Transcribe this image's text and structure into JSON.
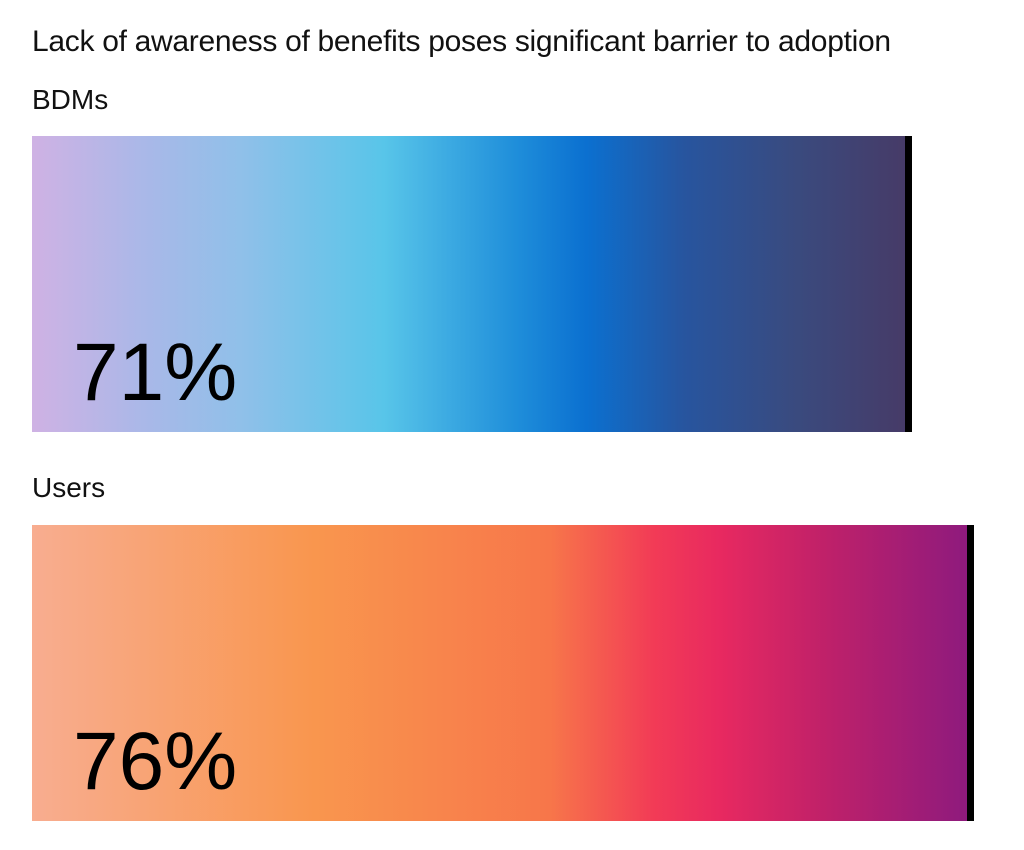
{
  "title": "Lack of awareness of benefits poses significant barrier to adoption",
  "text_color": "#111111",
  "background_color": "#ffffff",
  "chart_data": {
    "type": "bar",
    "orientation": "horizontal",
    "title": "Lack of awareness of benefits poses significant barrier to adoption",
    "categories": [
      "BDMs",
      "Users"
    ],
    "values": [
      71,
      76
    ],
    "xlabel": "",
    "ylabel": "",
    "xlim": [
      0,
      80
    ],
    "grid": false,
    "legend": "none",
    "bars": [
      {
        "label": "BDMs",
        "value": 71,
        "display_value": "71%",
        "value_text_color": "#000000",
        "end_marker_color": "#000000",
        "gradient_stops": [
          {
            "pos": 0,
            "color": "#cfb2e4"
          },
          {
            "pos": 13,
            "color": "#a9b8e8"
          },
          {
            "pos": 24,
            "color": "#8fc0e9"
          },
          {
            "pos": 40,
            "color": "#58c5e9"
          },
          {
            "pos": 55,
            "color": "#1f8eda"
          },
          {
            "pos": 63,
            "color": "#0b70d0"
          },
          {
            "pos": 74,
            "color": "#27559f"
          },
          {
            "pos": 87,
            "color": "#3a4a7e"
          },
          {
            "pos": 100,
            "color": "#473a66"
          }
        ]
      },
      {
        "label": "Users",
        "value": 76,
        "display_value": "76%",
        "value_text_color": "#000000",
        "end_marker_color": "#000000",
        "gradient_stops": [
          {
            "pos": 0,
            "color": "#f8ad90"
          },
          {
            "pos": 30,
            "color": "#f9964e"
          },
          {
            "pos": 55,
            "color": "#f7764a"
          },
          {
            "pos": 66,
            "color": "#f23b56"
          },
          {
            "pos": 73,
            "color": "#e82960"
          },
          {
            "pos": 84,
            "color": "#c02169"
          },
          {
            "pos": 100,
            "color": "#8c1a7e"
          }
        ]
      }
    ]
  }
}
